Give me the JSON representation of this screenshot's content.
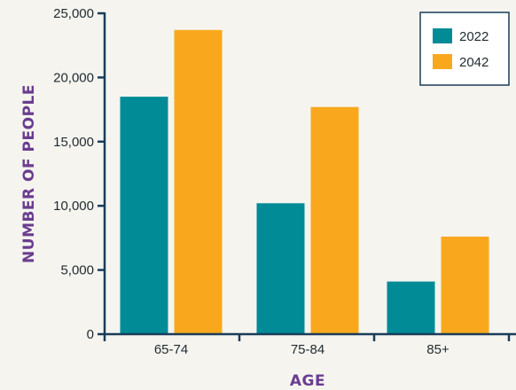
{
  "chart_data": {
    "type": "bar",
    "title": "",
    "xlabel": "AGE",
    "ylabel": "NUMBER OF PEOPLE",
    "categories": [
      "65-74",
      "75-84",
      "85+"
    ],
    "series": [
      {
        "name": "2022",
        "values": [
          18500,
          10200,
          4100
        ],
        "color": "#008b96"
      },
      {
        "name": "2042",
        "values": [
          23700,
          17700,
          7600
        ],
        "color": "#f9a81d"
      }
    ],
    "ylim": [
      0,
      25000
    ],
    "yticks": [
      0,
      5000,
      10000,
      15000,
      20000,
      25000
    ],
    "ytick_labels": [
      "0",
      "5,000",
      "10,000",
      "15,000",
      "20,000",
      "25,000"
    ],
    "grid": false,
    "legend_position": "top-right"
  },
  "colors": {
    "axis": "#1a3c5a",
    "axis_title": "#6a3d8f",
    "background": "#f5f4ef"
  }
}
